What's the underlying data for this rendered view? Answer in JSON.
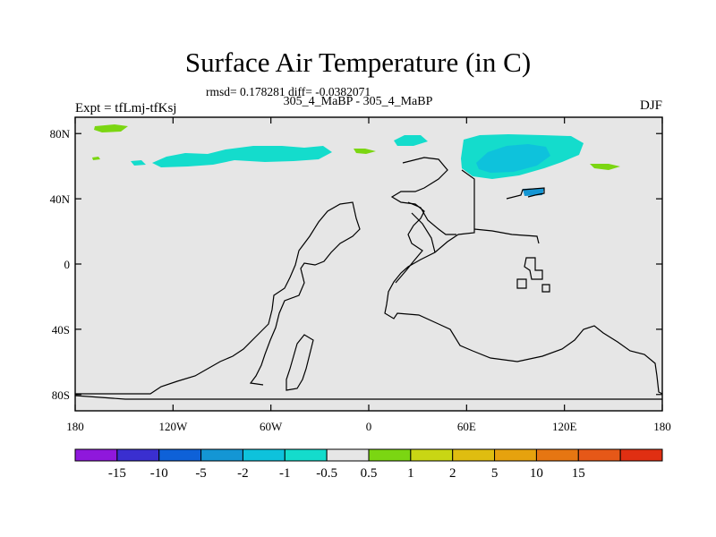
{
  "title": "Surface Air Temperature (in C)",
  "stats_line": "rmsd= 0.178281 diff= -0.0382071",
  "subtitle": "305_4_MaBP - 305_4_MaBP",
  "left_label": "Expt = tfLmj-tfKsj",
  "right_label": "DJF",
  "map": {
    "lon_range": [
      -180,
      180
    ],
    "lat_range": [
      -90,
      90
    ],
    "background_color": "#e6e6e6",
    "y_ticks": [
      {
        "value": 80,
        "label": "80N"
      },
      {
        "value": 40,
        "label": "40N"
      },
      {
        "value": 0,
        "label": "0"
      },
      {
        "value": -40,
        "label": "40S"
      },
      {
        "value": -80,
        "label": "80S"
      }
    ],
    "x_ticks": [
      {
        "value": -180,
        "label": "180"
      },
      {
        "value": -120,
        "label": "120W"
      },
      {
        "value": -60,
        "label": "60W"
      },
      {
        "value": 0,
        "label": "0"
      },
      {
        "value": 60,
        "label": "60E"
      },
      {
        "value": 120,
        "label": "120E"
      },
      {
        "value": 180,
        "label": "180"
      }
    ]
  },
  "colorbar": {
    "colors": [
      "#8f18dc",
      "#3a2fd0",
      "#0e61d8",
      "#1496d4",
      "#0ec2dc",
      "#14dccc",
      "#e6e6e6",
      "#7bd612",
      "#c9d614",
      "#dfbd10",
      "#e6a20e",
      "#e67612",
      "#e65818",
      "#e02f12"
    ],
    "labels": [
      "-15",
      "-10",
      "-5",
      "-2",
      "-1",
      "-0.5",
      "0.5",
      "1",
      "2",
      "5",
      "10",
      "15"
    ]
  }
}
